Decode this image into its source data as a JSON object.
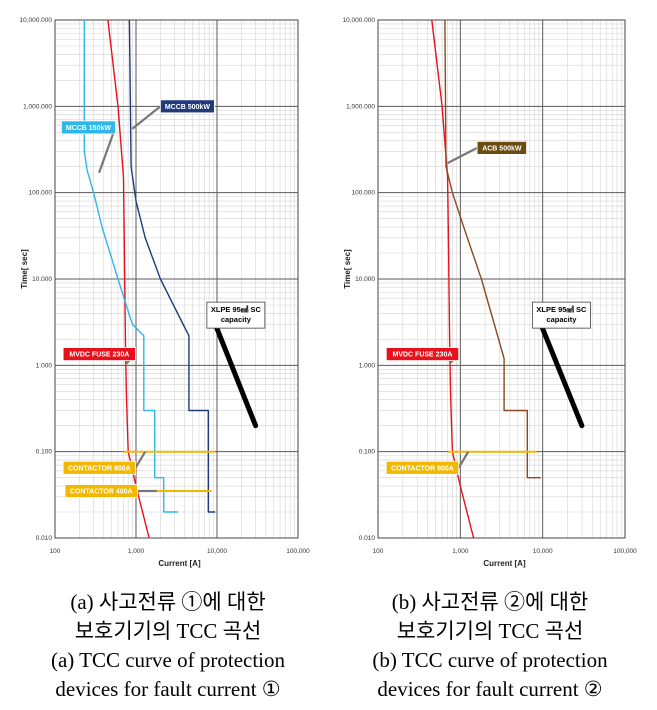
{
  "charts": [
    {
      "id": "a",
      "type": "line",
      "axis": {
        "x_label": "Current [A]",
        "y_label": "Time[ sec]",
        "x_scale": "log",
        "y_scale": "log",
        "xlim": [
          100,
          100000
        ],
        "ylim": [
          0.01,
          10000
        ],
        "x_ticks": [
          "100",
          "1,000",
          "10,000",
          "100,000"
        ],
        "y_ticks": [
          "0.010",
          "0.100",
          "1.000",
          "10.000",
          "100.000",
          "1,000.000",
          "10,000.000"
        ],
        "grid": true
      },
      "series": [
        {
          "name": "MVDC FUSE 230A",
          "color": "#e8101a",
          "points": [
            [
              450,
              10000
            ],
            [
              600,
              1000
            ],
            [
              700,
              150
            ],
            [
              720,
              20
            ],
            [
              740,
              2
            ],
            [
              760,
              0.5
            ],
            [
              800,
              0.1
            ],
            [
              1000,
              0.04
            ],
            [
              1450,
              0.01
            ]
          ]
        },
        {
          "name": "MCCB 150kW",
          "color": "#2fb7e8",
          "points": [
            [
              230,
              10000
            ],
            [
              230,
              300
            ],
            [
              250,
              180
            ],
            [
              300,
              100
            ],
            [
              380,
              40
            ],
            [
              600,
              10
            ],
            [
              900,
              3
            ],
            [
              1250,
              2.2
            ],
            [
              1250,
              0.3
            ],
            [
              1700,
              0.3
            ],
            [
              1700,
              0.05
            ],
            [
              2200,
              0.05
            ],
            [
              2200,
              0.02
            ],
            [
              3300,
              0.02
            ]
          ]
        },
        {
          "name": "MCCB 500kW",
          "color": "#1f3b7a",
          "points": [
            [
              830,
              10000
            ],
            [
              870,
              200
            ],
            [
              1000,
              80
            ],
            [
              1300,
              30
            ],
            [
              2000,
              10
            ],
            [
              4500,
              2.2
            ],
            [
              4500,
              0.3
            ],
            [
              7800,
              0.3
            ],
            [
              7800,
              0.02
            ],
            [
              9500,
              0.02
            ]
          ]
        },
        {
          "name": "CONTACTOR 800A",
          "color": "#f2b800",
          "points": [
            [
              700,
              0.1
            ],
            [
              9500,
              0.1
            ]
          ]
        },
        {
          "name": "CONTACTOR 400A",
          "color": "#f2b800",
          "points": [
            [
              700,
              0.035
            ],
            [
              8500,
              0.035
            ]
          ]
        },
        {
          "name": "XLPE 95mm² SC capacity",
          "color": "#000000",
          "points": [
            [
              9500,
              3
            ],
            [
              30000,
              0.2
            ]
          ]
        }
      ],
      "labels": [
        {
          "text": "MCCB 150kW",
          "bg": "#2fb7e8",
          "fg": "#ffffff",
          "at": [
            120,
            570
          ],
          "anchor": [
            350,
            170
          ]
        },
        {
          "text": "MCCB 500kW",
          "bg": "#1f3b7a",
          "fg": "#ffffff",
          "at": [
            2000,
            1000
          ],
          "anchor": [
            900,
            550
          ]
        },
        {
          "text": "MVDC FUSE 230A",
          "bg": "#e8101a",
          "fg": "#ffffff",
          "at": [
            126,
            1.35
          ],
          "anchor": [
            760,
            1.05
          ]
        },
        {
          "text": "CONTACTOR 800A",
          "bg": "#f2b800",
          "fg": "#ffffff",
          "at": [
            126,
            0.065
          ],
          "anchor": [
            1300,
            0.1
          ]
        },
        {
          "text": "CONTACTOR 400A",
          "bg": "#f2b800",
          "fg": "#ffffff",
          "at": [
            133,
            0.035
          ],
          "anchor": [
            1800,
            0.035
          ]
        }
      ],
      "annotation": {
        "line1": "XLPE 95㎟ SC",
        "line2": "capacity",
        "at": [
          8400,
          3.0
        ]
      },
      "caption": {
        "ko_line1": "(a) 사고전류 ①에 대한",
        "ko_line2": "보호기기의 TCC 곡선",
        "en_line1": "(a) TCC curve of protection",
        "en_line2": "devices for fault current ①"
      }
    },
    {
      "id": "b",
      "type": "line",
      "axis": {
        "x_label": "Current [A]",
        "y_label": "Time[ sec]",
        "x_scale": "log",
        "y_scale": "log",
        "xlim": [
          100,
          100000
        ],
        "ylim": [
          0.01,
          10000
        ],
        "x_ticks": [
          "100",
          "1,000",
          "10,000",
          "100,000"
        ],
        "y_ticks": [
          "0.010",
          "0.100",
          "1.000",
          "10.000",
          "100.000",
          "1,000.000",
          "10,000.000"
        ],
        "grid": true
      },
      "series": [
        {
          "name": "MVDC FUSE 230A",
          "color": "#e8101a",
          "points": [
            [
              450,
              10000
            ],
            [
              600,
              1000
            ],
            [
              700,
              150
            ],
            [
              720,
              20
            ],
            [
              740,
              2
            ],
            [
              760,
              0.5
            ],
            [
              800,
              0.1
            ],
            [
              1000,
              0.04
            ],
            [
              1450,
              0.01
            ]
          ]
        },
        {
          "name": "ACB 500kW",
          "color": "#8a4a1f",
          "points": [
            [
              650,
              10000
            ],
            [
              670,
              200
            ],
            [
              800,
              100
            ],
            [
              1100,
              40
            ],
            [
              1800,
              10
            ],
            [
              3400,
              1.2
            ],
            [
              3400,
              0.3
            ],
            [
              6500,
              0.3
            ],
            [
              6500,
              0.05
            ],
            [
              9500,
              0.05
            ]
          ]
        },
        {
          "name": "CONTACTOR 800A",
          "color": "#f2b800",
          "points": [
            [
              700,
              0.1
            ],
            [
              8500,
              0.1
            ]
          ]
        },
        {
          "name": "XLPE 95mm² SC capacity",
          "color": "#000000",
          "points": [
            [
              9500,
              3
            ],
            [
              30000,
              0.2
            ]
          ]
        }
      ],
      "labels": [
        {
          "text": "ACB 500kW",
          "bg": "#6b4c10",
          "fg": "#ffffff",
          "at": [
            1600,
            330
          ],
          "anchor": [
            700,
            220
          ]
        },
        {
          "text": "MVDC FUSE 230A",
          "bg": "#e8101a",
          "fg": "#ffffff",
          "at": [
            126,
            1.35
          ],
          "anchor": [
            740,
            1.05
          ]
        },
        {
          "text": "CONTACTOR 800A",
          "bg": "#f2b800",
          "fg": "#ffffff",
          "at": [
            126,
            0.065
          ],
          "anchor": [
            1250,
            0.1
          ]
        }
      ],
      "annotation": {
        "line1": "XLPE 95㎟ SC",
        "line2": "capacity",
        "at": [
          8400,
          3.0
        ]
      },
      "caption": {
        "ko_line1": "(b) 사고전류 ②에 대한",
        "ko_line2": "보호기기의 TCC 곡선",
        "en_line1": "(b) TCC curve of protection",
        "en_line2": "devices for fault current ②"
      }
    }
  ]
}
